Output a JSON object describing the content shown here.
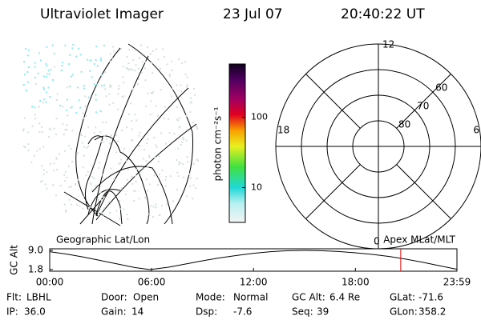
{
  "header": {
    "title": "Ultraviolet Imager",
    "date": "23 Jul 07",
    "time": "20:40:22 UT"
  },
  "colorbar": {
    "label": "photon cm⁻²s⁻¹",
    "scale": "log",
    "lim": [
      3.2,
      575
    ],
    "ticks": [
      10,
      100
    ]
  },
  "polar": {
    "mlt_labels": [
      "12",
      "18",
      "6",
      "0"
    ],
    "lat_lim": [
      50,
      90
    ],
    "lat_rings": [
      80,
      70,
      60
    ],
    "lat_labels": [
      60,
      70,
      80
    ]
  },
  "orbit": {
    "type": "line",
    "ylabel": "GC Alt",
    "left_label": "Geographic Lat/Lon",
    "right_label": "Apex MLat/MLT",
    "x": [
      0,
      1,
      2,
      3,
      4,
      5,
      5.9,
      7,
      8,
      9,
      10,
      11,
      12,
      13,
      14,
      15,
      16,
      17,
      18,
      19,
      20,
      21,
      22,
      23,
      23.98
    ],
    "values": [
      8.5,
      7.6,
      6.5,
      5.2,
      3.9,
      2.6,
      1.8,
      2.7,
      3.9,
      5.1,
      6.2,
      7.1,
      7.9,
      8.5,
      8.9,
      9.0,
      8.9,
      8.6,
      8.1,
      7.5,
      6.7,
      5.7,
      4.5,
      3.2,
      1.9
    ],
    "color": "#000000",
    "current_time": 20.67,
    "marker_color": "#e00000",
    "xlim": [
      0,
      23.98
    ],
    "ylim": [
      1.8,
      9.0
    ],
    "xticks": [
      {
        "value": 0,
        "label": "00:00"
      },
      {
        "value": 6,
        "label": "06:00"
      },
      {
        "value": 12,
        "label": "12:00"
      },
      {
        "value": 18,
        "label": "18:00"
      },
      {
        "value": 23.98,
        "label": "23:59"
      }
    ],
    "yticks": [
      {
        "value": 9.0,
        "label": "9.0"
      },
      1.8
    ]
  },
  "footer": [
    [
      "Flt:",
      "LBHL"
    ],
    [
      "Door:",
      "Open"
    ],
    [
      "Mode:",
      "Normal"
    ],
    [
      "GC Alt:",
      "6.4 Re"
    ],
    [
      "GLat:",
      "-71.6"
    ],
    [
      "IP:",
      "36.0"
    ],
    [
      "Gain:",
      "14"
    ],
    [
      "Dsp:",
      "-7.6"
    ],
    [
      "Seq:",
      "39"
    ],
    [
      "GLon:",
      "358.2"
    ]
  ]
}
